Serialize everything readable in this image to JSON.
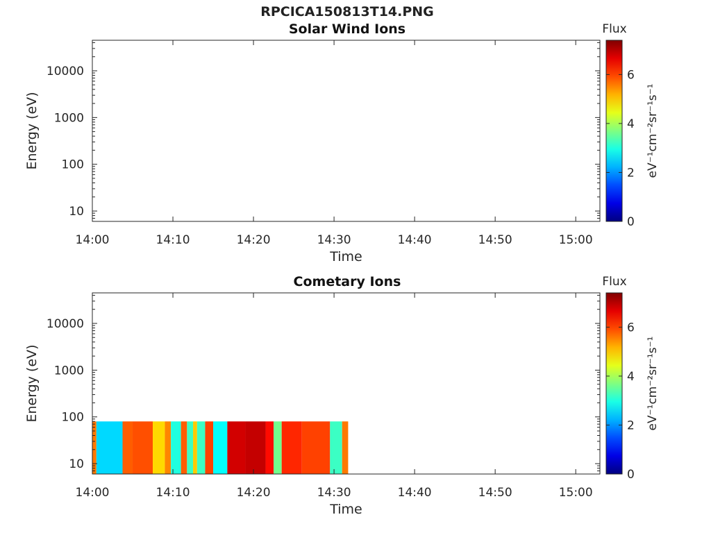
{
  "title": "RPCICA150813T14.PNG",
  "chart_data": [
    {
      "type": "heatmap",
      "title": "Solar Wind Ions",
      "xlabel": "Time",
      "ylabel": "Energy (eV)",
      "x_ticks": [
        "14:00",
        "14:10",
        "14:20",
        "14:30",
        "14:40",
        "14:50",
        "15:00"
      ],
      "y_ticks": [
        "10",
        "100",
        "1000",
        "10000"
      ],
      "y_scale": "log",
      "ylim": [
        6,
        45000
      ],
      "xlim": [
        "14:00",
        "15:03"
      ],
      "colorbar": {
        "label": "Flux",
        "unit": "eV⁻¹cm⁻²sr⁻¹s⁻¹",
        "ticks": [
          "0",
          "2",
          "4",
          "6"
        ],
        "range": [
          0,
          7.4
        ],
        "colormap": "jet"
      },
      "segments": []
    },
    {
      "type": "heatmap",
      "title": "Cometary Ions",
      "xlabel": "Time",
      "ylabel": "Energy (eV)",
      "x_ticks": [
        "14:00",
        "14:10",
        "14:20",
        "14:30",
        "14:40",
        "14:50",
        "15:00"
      ],
      "y_ticks": [
        "10",
        "100",
        "1000",
        "10000"
      ],
      "y_scale": "log",
      "ylim": [
        6,
        45000
      ],
      "xlim": [
        "14:00",
        "15:03"
      ],
      "colorbar": {
        "label": "Flux",
        "unit": "eV⁻¹cm⁻²sr⁻¹s⁻¹",
        "ticks": [
          "0",
          "2",
          "4",
          "6"
        ],
        "range": [
          0,
          7.4
        ],
        "colormap": "jet"
      },
      "energy_range": [
        6,
        80
      ],
      "segments": [
        {
          "start": "14:00:00",
          "end": "14:00:30",
          "flux": 5.6
        },
        {
          "start": "14:00:30",
          "end": "14:03:45",
          "flux": 2.5
        },
        {
          "start": "14:03:45",
          "end": "14:05:00",
          "flux": 5.8
        },
        {
          "start": "14:05:00",
          "end": "14:07:30",
          "flux": 5.9
        },
        {
          "start": "14:07:30",
          "end": "14:09:00",
          "flux": 4.9
        },
        {
          "start": "14:09:00",
          "end": "14:09:45",
          "flux": 5.5
        },
        {
          "start": "14:09:45",
          "end": "14:11:00",
          "flux": 3.0
        },
        {
          "start": "14:11:00",
          "end": "14:11:45",
          "flux": 5.8
        },
        {
          "start": "14:11:45",
          "end": "14:12:30",
          "flux": 3.2
        },
        {
          "start": "14:12:30",
          "end": "14:13:00",
          "flux": 5.0
        },
        {
          "start": "14:13:00",
          "end": "14:14:00",
          "flux": 3.2
        },
        {
          "start": "14:14:00",
          "end": "14:15:00",
          "flux": 6.0
        },
        {
          "start": "14:15:00",
          "end": "14:16:45",
          "flux": 2.8
        },
        {
          "start": "14:16:45",
          "end": "14:19:00",
          "flux": 6.8
        },
        {
          "start": "14:19:00",
          "end": "14:21:30",
          "flux": 6.9
        },
        {
          "start": "14:21:30",
          "end": "14:22:30",
          "flux": 6.4
        },
        {
          "start": "14:22:30",
          "end": "14:23:30",
          "flux": 3.6
        },
        {
          "start": "14:23:30",
          "end": "14:26:00",
          "flux": 6.2
        },
        {
          "start": "14:26:00",
          "end": "14:29:30",
          "flux": 6.0
        },
        {
          "start": "14:29:30",
          "end": "14:31:00",
          "flux": 3.2
        },
        {
          "start": "14:31:00",
          "end": "14:31:45",
          "flux": 5.6
        }
      ]
    }
  ]
}
